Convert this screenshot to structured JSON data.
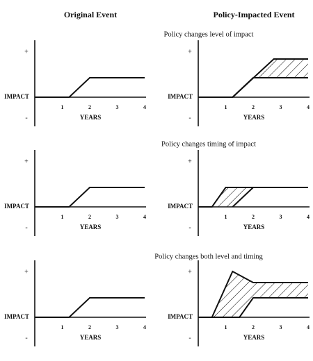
{
  "column_headers": [
    "Original Event",
    "Policy-Impacted Event"
  ],
  "rows": [
    {
      "title": "Policy changes level of impact"
    },
    {
      "title": "Policy changes timing of impact"
    },
    {
      "title": "Policy changes both level and timing"
    }
  ],
  "axis": {
    "plus": "+",
    "minus": "-",
    "y_label": "IMPACT",
    "x_label": "YEARS",
    "x_ticks": [
      "1",
      "2",
      "3",
      "4"
    ]
  }
}
